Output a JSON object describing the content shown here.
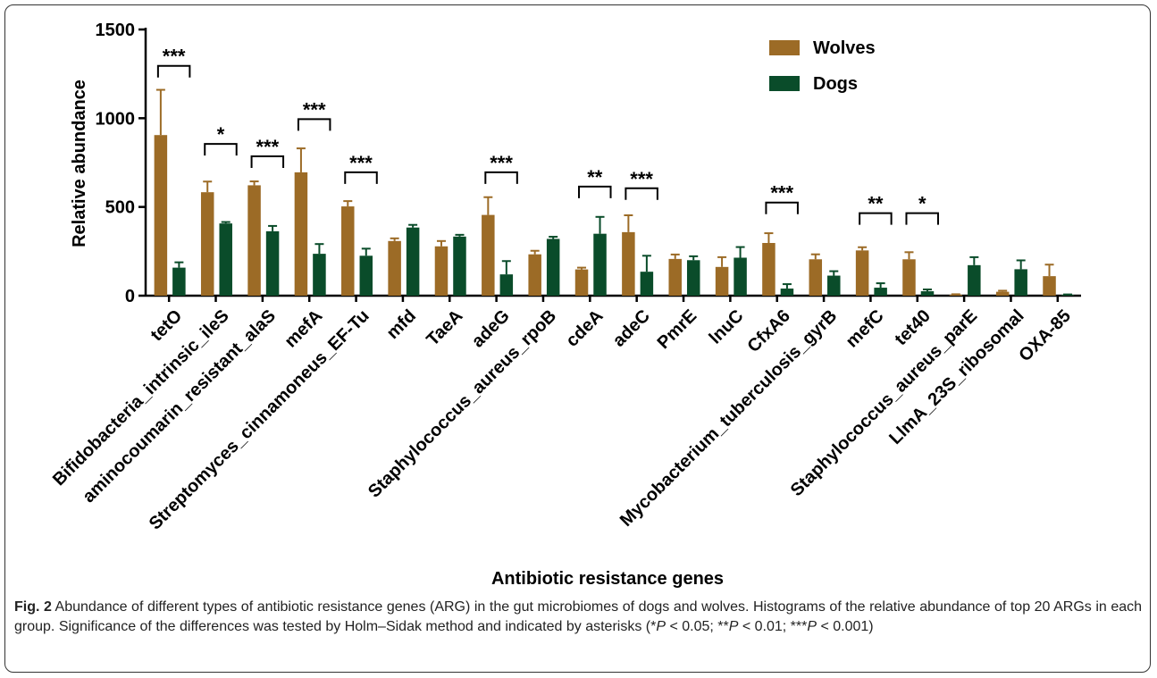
{
  "chart_data": {
    "type": "bar",
    "title": "",
    "xlabel": "Antibiotic resistance genes",
    "ylabel": "Relative abundance",
    "ylim": [
      0,
      1500
    ],
    "yticks": [
      0,
      500,
      1000,
      1500
    ],
    "legend_position": "top-right",
    "categories": [
      "tetO",
      "Bifidobacteria_intrinsic_ileS",
      "aminocoumarin_resistant_alaS",
      "mefA",
      "Streptomyces_cinnamoneus_EF-Tu",
      "mfd",
      "TaeA",
      "adeG",
      "Staphylococcus_aureus_rpoB",
      "cdeA",
      "adeC",
      "PmrE",
      "lnuC",
      "CfxA6",
      "Mycobacterium_tuberculosis_gyrB",
      "mefC",
      "tet40",
      "Staphylococcus_aureus_parE",
      "LlmA_23S_ribosomal",
      "OXA-85"
    ],
    "series": [
      {
        "name": "Wolves",
        "color": "#9C6B26",
        "values": [
          905,
          583,
          622,
          695,
          503,
          308,
          278,
          455,
          233,
          148,
          358,
          207,
          162,
          297,
          205,
          255,
          205,
          5,
          22,
          110
        ],
        "errors": [
          255,
          60,
          22,
          135,
          30,
          15,
          30,
          100,
          20,
          10,
          95,
          25,
          55,
          55,
          28,
          18,
          40,
          3,
          6,
          65
        ]
      },
      {
        "name": "Dogs",
        "color": "#0A4C2A",
        "values": [
          158,
          407,
          363,
          236,
          225,
          384,
          333,
          120,
          320,
          349,
          135,
          200,
          214,
          40,
          113,
          45,
          25,
          172,
          149,
          5
        ],
        "errors": [
          30,
          8,
          30,
          55,
          40,
          15,
          10,
          75,
          12,
          95,
          90,
          22,
          60,
          25,
          25,
          25,
          10,
          45,
          50,
          2
        ]
      }
    ],
    "significance": [
      {
        "from": 0,
        "to": 0,
        "label": "***",
        "level": 1295
      },
      {
        "from": 1,
        "to": 1,
        "label": "*",
        "level": 855
      },
      {
        "from": 2,
        "to": 2,
        "label": "***",
        "level": 785
      },
      {
        "from": 3,
        "to": 3,
        "label": "***",
        "level": 995
      },
      {
        "from": 4,
        "to": 4,
        "label": "***",
        "level": 695
      },
      {
        "from": 7,
        "to": 7,
        "label": "***",
        "level": 695
      },
      {
        "from": 9,
        "to": 9,
        "label": "**",
        "level": 615
      },
      {
        "from": 10,
        "to": 10,
        "label": "***",
        "level": 605
      },
      {
        "from": 13,
        "to": 13,
        "label": "***",
        "level": 525
      },
      {
        "from": 15,
        "to": 15,
        "label": "**",
        "level": 465
      },
      {
        "from": 16,
        "to": 16,
        "label": "*",
        "level": 465
      }
    ]
  },
  "caption": {
    "fig_label": "Fig. 2",
    "text_1": " Abundance of different types of antibiotic resistance genes (ARG) in the gut microbiomes of dogs and wolves. Histograms of the relative abundance of top 20 ARGs in each group. Significance of the differences was tested by Holm–Sidak method and indicated by asterisks (*",
    "p1": "P",
    "text_2": " < 0.05; **",
    "p2": "P",
    "text_3": " < 0.01; ***",
    "p3": "P",
    "text_4": " < 0.001)"
  }
}
